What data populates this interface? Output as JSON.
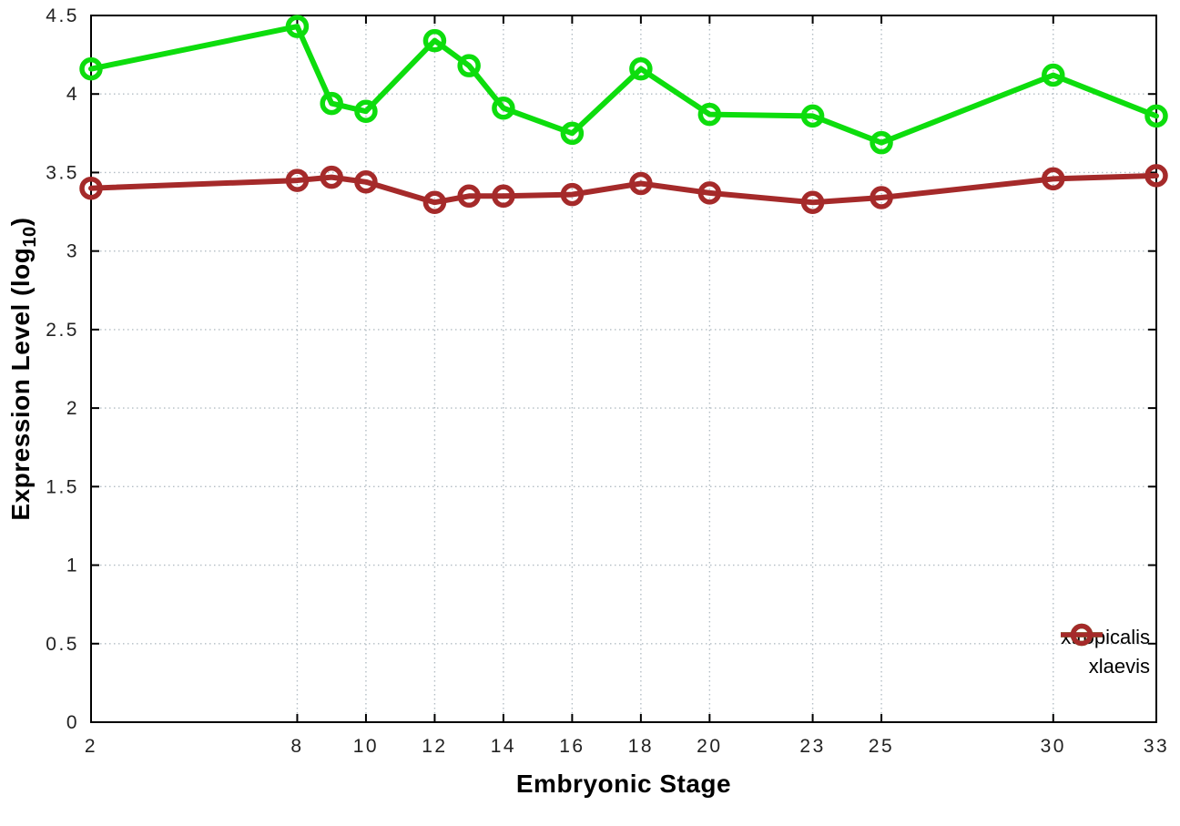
{
  "chart_data": {
    "type": "line",
    "title": "",
    "xlabel": "Embryonic Stage",
    "ylabel_prefix": "Expression Level (log",
    "ylabel_sub": "10",
    "ylabel_suffix": ")",
    "xlim": [
      2,
      33
    ],
    "ylim": [
      0,
      4.5
    ],
    "xticks": [
      2,
      8,
      10,
      12,
      14,
      16,
      18,
      20,
      23,
      25,
      30,
      33
    ],
    "xtick_labels": [
      "2",
      "8",
      "10",
      "12",
      "14",
      "16",
      "18",
      "20",
      "23",
      "25",
      "30",
      "33"
    ],
    "yticks": [
      0,
      0.5,
      1,
      1.5,
      2,
      2.5,
      3,
      3.5,
      4,
      4.5
    ],
    "ytick_labels": [
      "0",
      "0.5",
      "1",
      "1.5",
      "2",
      "2.5",
      "3",
      "3.5",
      "4",
      "4.5"
    ],
    "grid": true,
    "grid_style": "dotted",
    "legend_position": "bottom-right-inside",
    "marker": "open-circle",
    "x": [
      2,
      8,
      9,
      10,
      12,
      13,
      14,
      16,
      18,
      20,
      23,
      25,
      30,
      33
    ],
    "series": [
      {
        "name": "xtropicalis",
        "color": "#0ddd0d",
        "values": [
          4.16,
          4.43,
          3.94,
          3.89,
          4.34,
          4.18,
          3.91,
          3.75,
          4.16,
          3.87,
          3.86,
          3.69,
          4.12,
          3.86
        ]
      },
      {
        "name": "xlaevis",
        "color": "#a52a2a",
        "values": [
          3.4,
          3.45,
          3.47,
          3.44,
          3.31,
          3.35,
          3.35,
          3.36,
          3.43,
          3.37,
          3.31,
          3.34,
          3.46,
          3.48
        ]
      }
    ],
    "colors": {
      "border": "#000000",
      "grid": "#b3bdc4",
      "tick_text": "#222222"
    }
  }
}
